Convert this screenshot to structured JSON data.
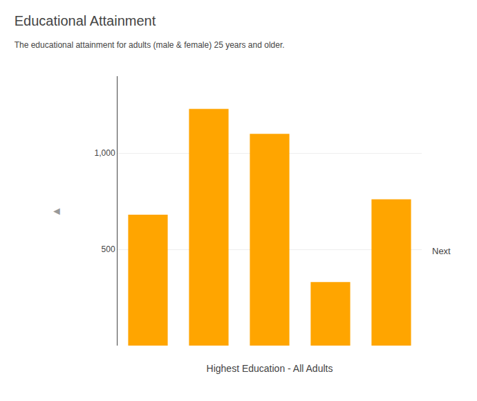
{
  "chart_data": {
    "type": "bar",
    "title": "Educational Attainment",
    "subtitle": "The educational attainment for adults (male & female) 25 years and older.",
    "xlabel": "Highest Education - All Adults",
    "categories": [
      null,
      null,
      null,
      null,
      null
    ],
    "values": [
      680,
      1230,
      1100,
      330,
      760
    ],
    "color": "#FFA500",
    "ylim": [
      0,
      1400
    ],
    "yticks": [
      500,
      {
        "value": 1000,
        "label": "1,000"
      }
    ],
    "grid": true,
    "tick_labels": "y",
    "annotations": [
      "◄",
      "Next"
    ]
  }
}
